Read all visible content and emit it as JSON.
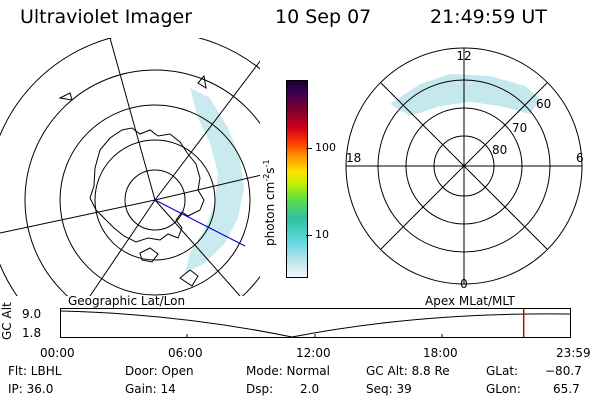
{
  "header": {
    "instrument": "Ultraviolet Imager",
    "date": "10 Sep 07",
    "time": "21:49:59 UT"
  },
  "colorbar": {
    "unit_label": "photon cm",
    "unit_exp1": "-2",
    "unit_s": "s",
    "unit_exp2": "-1",
    "ticks": [
      "100",
      "10"
    ]
  },
  "polar_plot": {
    "mlt_top": "12",
    "mlt_left": "18",
    "mlt_right": "6",
    "mlt_bottom": "0",
    "lat_labels": [
      "60",
      "70",
      "80"
    ]
  },
  "timeline": {
    "left_caption": "Geographic Lat/Lon",
    "right_caption": "Apex  MLat/MLT",
    "axis_title": "GC Alt",
    "y_ticks": [
      "9.0",
      "1.8"
    ],
    "x_ticks": [
      "00:00",
      "06:00",
      "12:00",
      "18:00",
      "23:59"
    ],
    "marker_fraction": 0.909
  },
  "status": {
    "filter": "Flt: LBHL",
    "ip": "IP: 36.0",
    "door": "Door: Open",
    "gain": "Gain: 14",
    "mode": "Mode: Normal",
    "dsp_label": "Dsp:",
    "dsp_value": "2.0",
    "gc_alt": "GC Alt: 8.8 Re",
    "seq": "Seq: 39",
    "glat_label": "GLat:",
    "glat_value": "−80.7",
    "glon_label": "GLon:",
    "glon_value": "65.7"
  },
  "colors": {
    "aurora": "#bfe6ec",
    "marker": "#cc0000",
    "orbit_track": "#0000cc"
  }
}
